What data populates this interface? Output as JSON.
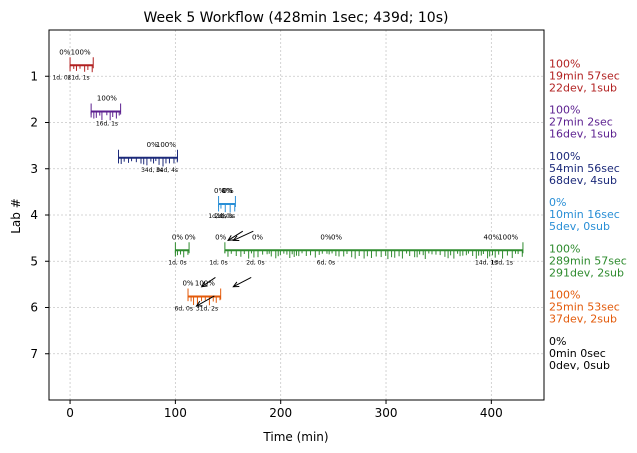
{
  "chart_data": {
    "type": "timeline",
    "title": "Week 5 Workflow (428min 1sec; 439d; 10s)",
    "xlabel": "Time (min)",
    "ylabel": "Lab #",
    "xlim": [
      -20,
      450
    ],
    "ylim": [
      0,
      8
    ],
    "x_ticks": [
      0,
      100,
      200,
      300,
      400
    ],
    "y_ticks": [
      1,
      2,
      3,
      4,
      5,
      6,
      7
    ],
    "grid": true,
    "series": [
      {
        "lab": 1,
        "color": "#b22222",
        "segments": [
          [
            0,
            22
          ]
        ],
        "top_labels": [
          {
            "x": -5,
            "text": "0%"
          },
          {
            "x": 10,
            "text": "100%"
          }
        ],
        "bottom_labels": [
          {
            "x": -8,
            "text": "1d, 0s"
          },
          {
            "x": 8,
            "text": "21d, 1s"
          }
        ],
        "summary": [
          "100%",
          "19min 57sec",
          "22dev, 1sub"
        ]
      },
      {
        "lab": 2,
        "color": "#5b1f8f",
        "segments": [
          [
            20,
            48
          ]
        ],
        "top_labels": [
          {
            "x": 35,
            "text": "100%"
          }
        ],
        "bottom_labels": [
          {
            "x": 35,
            "text": "16d, 1s"
          }
        ],
        "summary": [
          "100%",
          "27min 2sec",
          "16dev, 1sub"
        ]
      },
      {
        "lab": 3,
        "color": "#1c2a7a",
        "segments": [
          [
            46,
            102
          ]
        ],
        "top_labels": [
          {
            "x": 78,
            "text": "0%"
          },
          {
            "x": 91,
            "text": "100%"
          }
        ],
        "bottom_labels": [
          {
            "x": 78,
            "text": "34d, 0s"
          },
          {
            "x": 92,
            "text": "34d, 4s"
          }
        ],
        "summary": [
          "100%",
          "54min 56sec",
          "68dev, 4sub"
        ]
      },
      {
        "lab": 4,
        "color": "#2a8fd6",
        "segments": [
          [
            141,
            157
          ]
        ],
        "top_labels": [
          {
            "x": 142,
            "text": "0%"
          },
          {
            "x": 149,
            "text": "0%"
          },
          {
            "x": 150,
            "text": "0%"
          }
        ],
        "bottom_labels": [
          {
            "x": 140,
            "text": "1d, 0s"
          },
          {
            "x": 146,
            "text": "2d, 0s"
          },
          {
            "x": 148,
            "text": "1d, 0s"
          }
        ],
        "arrows": [
          {
            "from": [
              174,
              4.35
            ],
            "to": [
              155,
              4.55
            ]
          },
          {
            "from": [
              164,
              4.35
            ],
            "to": [
              150,
              4.55
            ]
          }
        ],
        "summary": [
          "0%",
          "10min 16sec",
          "5dev, 0sub"
        ]
      },
      {
        "lab": 5,
        "color": "#2e8b2e",
        "segments": [
          [
            100,
            113
          ],
          [
            147,
            430
          ]
        ],
        "top_labels": [
          {
            "x": 102,
            "text": "0%"
          },
          {
            "x": 114,
            "text": "0%"
          },
          {
            "x": 143,
            "text": "0%"
          },
          {
            "x": 178,
            "text": "0%"
          },
          {
            "x": 243,
            "text": "0%"
          },
          {
            "x": 253,
            "text": "0%"
          },
          {
            "x": 400,
            "text": "40%"
          },
          {
            "x": 416,
            "text": "100%"
          }
        ],
        "bottom_labels": [
          {
            "x": 102,
            "text": "1d, 0s"
          },
          {
            "x": 141,
            "text": "1d, 0s"
          },
          {
            "x": 176,
            "text": "2d, 0s"
          },
          {
            "x": 243,
            "text": "6d, 0s"
          },
          {
            "x": 395,
            "text": "14d, 1s"
          },
          {
            "x": 410,
            "text": "13d, 1s"
          }
        ],
        "arrows": [
          {
            "from": [
              138,
              5.35
            ],
            "to": [
              125,
              5.55
            ]
          },
          {
            "from": [
              172,
              5.35
            ],
            "to": [
              155,
              5.55
            ]
          }
        ],
        "summary": [
          "100%",
          "289min 57sec",
          "291dev, 2sub"
        ]
      },
      {
        "lab": 6,
        "color": "#e35a0a",
        "segments": [
          [
            112,
            143
          ]
        ],
        "top_labels": [
          {
            "x": 112,
            "text": "0%"
          },
          {
            "x": 128,
            "text": "100%"
          }
        ],
        "bottom_labels": [
          {
            "x": 108,
            "text": "6d, 0s"
          },
          {
            "x": 130,
            "text": "31d, 2s"
          }
        ],
        "arrows": [
          {
            "from": [
              137,
              5.75
            ],
            "to": [
              120,
              5.97
            ]
          }
        ],
        "summary": [
          "100%",
          "25min 53sec",
          "37dev, 2sub"
        ]
      },
      {
        "lab": 7,
        "color": "#000000",
        "segments": [],
        "top_labels": [],
        "bottom_labels": [],
        "summary": [
          "0%",
          "0min 0sec",
          "0dev, 0sub"
        ]
      }
    ]
  }
}
